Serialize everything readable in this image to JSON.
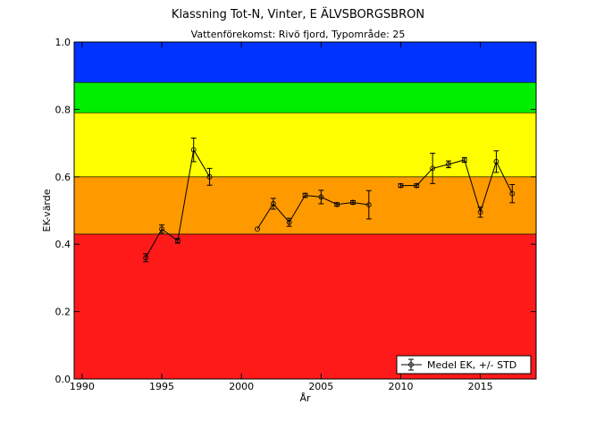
{
  "chart_data": {
    "type": "line",
    "title": "Klassning Tot-N, Vinter, E ÄLVSBORGSBRON",
    "subtitle": "Vattenförekomst: Rivö fjord, Typområde: 25",
    "xlabel": "År",
    "ylabel": "EK-värde",
    "xlim": [
      1989.5,
      2018.5
    ],
    "ylim": [
      0.0,
      1.0
    ],
    "x_ticks": [
      1990,
      1995,
      2000,
      2005,
      2010,
      2015
    ],
    "y_ticks": [
      0.0,
      0.2,
      0.4,
      0.6,
      0.8,
      1.0
    ],
    "x_tick_labels": [
      "1990",
      "1995",
      "2000",
      "2005",
      "2010",
      "2015"
    ],
    "y_tick_labels": [
      "0.0",
      "0.2",
      "0.4",
      "0.6",
      "0.8",
      "1.0"
    ],
    "class_bands": [
      {
        "from": 0.0,
        "to": 0.43,
        "color": "#ff1a1a"
      },
      {
        "from": 0.43,
        "to": 0.6,
        "color": "#ff9900"
      },
      {
        "from": 0.6,
        "to": 0.79,
        "color": "#ffff00"
      },
      {
        "from": 0.79,
        "to": 0.88,
        "color": "#00ee00"
      },
      {
        "from": 0.88,
        "to": 1.0,
        "color": "#0033ff"
      }
    ],
    "legend": {
      "label": "Medel EK, +/- STD",
      "position": "lower-right"
    },
    "series": [
      {
        "name": "Medel EK, +/- STD",
        "segments": [
          [
            {
              "x": 1994,
              "y": 0.36,
              "std": 0.012
            },
            {
              "x": 1995,
              "y": 0.445,
              "std": 0.012
            },
            {
              "x": 1996,
              "y": 0.41,
              "std": 0.007
            },
            {
              "x": 1997,
              "y": 0.68,
              "std": 0.035
            },
            {
              "x": 1998,
              "y": 0.6,
              "std": 0.025
            }
          ],
          [
            {
              "x": 2001,
              "y": 0.445,
              "std": 0.0
            },
            {
              "x": 2002,
              "y": 0.52,
              "std": 0.016
            },
            {
              "x": 2003,
              "y": 0.465,
              "std": 0.012
            },
            {
              "x": 2004,
              "y": 0.545,
              "std": 0.006
            },
            {
              "x": 2005,
              "y": 0.54,
              "std": 0.02
            },
            {
              "x": 2006,
              "y": 0.518,
              "std": 0.005
            },
            {
              "x": 2007,
              "y": 0.524,
              "std": 0.005
            },
            {
              "x": 2008,
              "y": 0.517,
              "std": 0.042
            }
          ],
          [
            {
              "x": 2010,
              "y": 0.574,
              "std": 0.005
            },
            {
              "x": 2011,
              "y": 0.574,
              "std": 0.005
            },
            {
              "x": 2012,
              "y": 0.625,
              "std": 0.045
            },
            {
              "x": 2013,
              "y": 0.637,
              "std": 0.01
            },
            {
              "x": 2014,
              "y": 0.65,
              "std": 0.007
            },
            {
              "x": 2015,
              "y": 0.495,
              "std": 0.015
            },
            {
              "x": 2016,
              "y": 0.645,
              "std": 0.032
            },
            {
              "x": 2017,
              "y": 0.55,
              "std": 0.027
            }
          ]
        ]
      }
    ]
  }
}
